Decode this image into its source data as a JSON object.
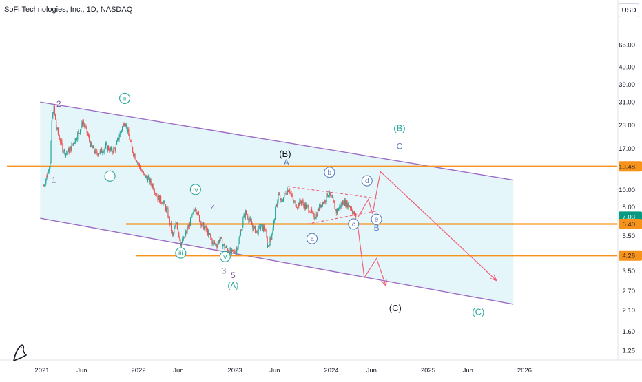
{
  "header": {
    "symbol_title": "SoFi Technologies, Inc., 1D, NASDAQ",
    "currency_button": "USD"
  },
  "colors": {
    "channel_line": "#9c6cc4",
    "channel_fill": "#e5f6fb",
    "hline": "#f7931a",
    "candle_up": "#26a69a",
    "candle_down": "#ef5350",
    "projection": "#f06277",
    "wave_teal": "#26a69a",
    "wave_purple": "#7e57a0",
    "wave_blue": "#5b7fbf",
    "wave_black": "#131722"
  },
  "chart_data": {
    "type": "candlestick",
    "y_scale": "log",
    "y_ticks": [
      "65.00",
      "49.00",
      "39.00",
      "31.00",
      "23.00",
      "17.00",
      "10.00",
      "8.00",
      "5.50",
      "3.50",
      "2.70",
      "2.10",
      "1.60",
      "1.25"
    ],
    "x_ticks": [
      "2021",
      "Jun",
      "2022",
      "Jun",
      "2023",
      "Jun",
      "2024",
      "Jun",
      "2025",
      "Jun",
      "2026"
    ],
    "price_labels": [
      {
        "text": "13.48",
        "value": 13.48,
        "style": "orange"
      },
      {
        "text": "7.03",
        "value": 7.03,
        "style": "green"
      },
      {
        "text": "6.40",
        "value": 6.4,
        "style": "orange"
      },
      {
        "text": "4.26",
        "value": 4.26,
        "style": "orange"
      }
    ],
    "horizontal_levels": [
      13.48,
      6.4,
      4.26
    ],
    "price_path": [
      [
        "2021-01-07",
        10.5
      ],
      [
        "2021-01-20",
        12.0
      ],
      [
        "2021-02-01",
        14.5
      ],
      [
        "2021-02-08",
        25.0
      ],
      [
        "2021-02-15",
        28.5
      ],
      [
        "2021-02-25",
        22.0
      ],
      [
        "2021-03-08",
        19.5
      ],
      [
        "2021-03-20",
        17.0
      ],
      [
        "2021-04-01",
        16.0
      ],
      [
        "2021-04-20",
        17.0
      ],
      [
        "2021-05-01",
        18.5
      ],
      [
        "2021-05-20",
        21.0
      ],
      [
        "2021-06-05",
        24.0
      ],
      [
        "2021-06-20",
        21.0
      ],
      [
        "2021-07-05",
        17.5
      ],
      [
        "2021-07-25",
        16.0
      ],
      [
        "2021-08-15",
        16.5
      ],
      [
        "2021-09-01",
        17.5
      ],
      [
        "2021-09-20",
        16.5
      ],
      [
        "2021-10-05",
        17.0
      ],
      [
        "2021-10-20",
        20.0
      ],
      [
        "2021-11-10",
        24.5
      ],
      [
        "2021-11-25",
        20.0
      ],
      [
        "2021-12-10",
        16.5
      ],
      [
        "2022-01-05",
        13.5
      ],
      [
        "2022-01-20",
        12.0
      ],
      [
        "2022-02-05",
        11.5
      ],
      [
        "2022-02-25",
        10.5
      ],
      [
        "2022-03-15",
        9.0
      ],
      [
        "2022-04-05",
        8.5
      ],
      [
        "2022-04-20",
        7.5
      ],
      [
        "2022-05-10",
        5.5
      ],
      [
        "2022-05-25",
        6.5
      ],
      [
        "2022-06-10",
        5.0
      ],
      [
        "2022-06-20",
        5.2
      ],
      [
        "2022-07-05",
        6.0
      ],
      [
        "2022-07-20",
        6.8
      ],
      [
        "2022-08-05",
        8.0
      ],
      [
        "2022-08-20",
        6.8
      ],
      [
        "2022-09-05",
        6.2
      ],
      [
        "2022-09-25",
        5.6
      ],
      [
        "2022-10-10",
        5.0
      ],
      [
        "2022-10-25",
        4.9
      ],
      [
        "2022-11-05",
        5.3
      ],
      [
        "2022-11-20",
        4.8
      ],
      [
        "2022-12-05",
        4.6
      ],
      [
        "2022-12-20",
        4.4
      ],
      [
        "2023-01-05",
        4.5
      ],
      [
        "2023-01-20",
        5.5
      ],
      [
        "2023-02-01",
        6.8
      ],
      [
        "2023-02-10",
        7.4
      ],
      [
        "2023-02-25",
        6.8
      ],
      [
        "2023-03-10",
        6.1
      ],
      [
        "2023-03-25",
        5.8
      ],
      [
        "2023-04-10",
        6.2
      ],
      [
        "2023-04-25",
        6.0
      ],
      [
        "2023-05-05",
        4.8
      ],
      [
        "2023-05-15",
        5.2
      ],
      [
        "2023-05-25",
        6.0
      ],
      [
        "2023-06-05",
        8.0
      ],
      [
        "2023-06-15",
        9.3
      ],
      [
        "2023-06-25",
        8.5
      ],
      [
        "2023-07-10",
        9.5
      ],
      [
        "2023-07-25",
        10.2
      ],
      [
        "2023-08-10",
        8.5
      ],
      [
        "2023-08-25",
        8.2
      ],
      [
        "2023-09-10",
        8.6
      ],
      [
        "2023-09-25",
        8.0
      ],
      [
        "2023-10-10",
        7.8
      ],
      [
        "2023-10-25",
        7.0
      ],
      [
        "2023-11-05",
        7.2
      ],
      [
        "2023-11-20",
        8.2
      ],
      [
        "2023-12-05",
        8.6
      ],
      [
        "2023-12-20",
        9.6
      ],
      [
        "2024-01-05",
        8.7
      ],
      [
        "2024-01-20",
        7.5
      ],
      [
        "2024-02-01",
        8.0
      ],
      [
        "2024-02-15",
        8.5
      ],
      [
        "2024-03-01",
        8.3
      ],
      [
        "2024-03-15",
        8.0
      ],
      [
        "2024-03-25",
        7.3
      ],
      [
        "2024-04-05",
        7.03
      ]
    ],
    "projections": [
      {
        "name": "path-a",
        "points": [
          [
            "2024-04-12",
            7.03
          ],
          [
            "2024-05-20",
            8.8
          ],
          [
            "2024-06-05",
            7.3
          ],
          [
            "2024-07-05",
            12.6
          ],
          [
            "2025-09-15",
            3.1
          ]
        ]
      },
      {
        "name": "path-b",
        "points": [
          [
            "2024-04-08",
            6.6
          ],
          [
            "2024-05-05",
            3.2
          ],
          [
            "2024-06-20",
            4.1
          ],
          [
            "2024-07-25",
            2.9
          ]
        ]
      }
    ],
    "triangle_lines": [
      {
        "points": [
          [
            "2023-07-20",
            10.4
          ],
          [
            "2024-06-25",
            8.9
          ]
        ]
      },
      {
        "points": [
          [
            "2023-10-01",
            6.4
          ],
          [
            "2024-06-25",
            7.6
          ]
        ]
      }
    ],
    "channel": {
      "upper": [
        [
          "2020-12-25",
          31.0
        ],
        [
          "2025-11-20",
          11.3
        ]
      ],
      "lower": [
        [
          "2020-12-25",
          6.9
        ],
        [
          "2025-11-20",
          2.27
        ]
      ]
    },
    "wave_labels": [
      {
        "text": "2",
        "date": "2021-03-05",
        "price": 30.3,
        "style": "purple"
      },
      {
        "text": "ii",
        "date": "2021-11-10",
        "price": 32.5,
        "style": "teal-circle"
      },
      {
        "text": "1",
        "date": "2021-02-15",
        "price": 11.3,
        "style": "purple"
      },
      {
        "text": "i",
        "date": "2021-09-15",
        "price": 11.9,
        "style": "teal-circle"
      },
      {
        "text": "iv",
        "date": "2022-08-05",
        "price": 10.0,
        "style": "teal-circle"
      },
      {
        "text": "4",
        "date": "2022-10-10",
        "price": 7.9,
        "style": "purple"
      },
      {
        "text": "iii",
        "date": "2022-06-10",
        "price": 4.4,
        "style": "teal-circle"
      },
      {
        "text": "v",
        "date": "2022-11-25",
        "price": 4.2,
        "style": "teal-circle"
      },
      {
        "text": "3",
        "date": "2022-11-20",
        "price": 3.5,
        "style": "purple"
      },
      {
        "text": "5",
        "date": "2022-12-25",
        "price": 3.3,
        "style": "purple"
      },
      {
        "text": "(A)",
        "date": "2022-12-25",
        "price": 2.9,
        "style": "teal"
      },
      {
        "text": "(B)",
        "date": "2023-07-10",
        "price": 15.8,
        "style": "black"
      },
      {
        "text": "A",
        "date": "2023-07-15",
        "price": 14.2,
        "style": "blue"
      },
      {
        "text": "b",
        "date": "2023-12-25",
        "price": 12.5,
        "style": "blue-circle"
      },
      {
        "text": "d",
        "date": "2024-05-15",
        "price": 11.2,
        "style": "blue-circle"
      },
      {
        "text": "a",
        "date": "2023-10-20",
        "price": 5.3,
        "style": "blue-circle"
      },
      {
        "text": "c",
        "date": "2024-03-25",
        "price": 6.4,
        "style": "blue-circle"
      },
      {
        "text": "e",
        "date": "2024-06-20",
        "price": 6.8,
        "style": "blue-circle"
      },
      {
        "text": "B",
        "date": "2024-06-20",
        "price": 6.1,
        "style": "blue"
      },
      {
        "text": "(B)",
        "date": "2024-09-15",
        "price": 22.0,
        "style": "teal"
      },
      {
        "text": "C",
        "date": "2024-09-15",
        "price": 17.5,
        "style": "blue"
      },
      {
        "text": "(C)",
        "date": "2024-08-30",
        "price": 2.15,
        "style": "black"
      },
      {
        "text": "(C)",
        "date": "2025-07-10",
        "price": 2.05,
        "style": "teal"
      }
    ]
  }
}
